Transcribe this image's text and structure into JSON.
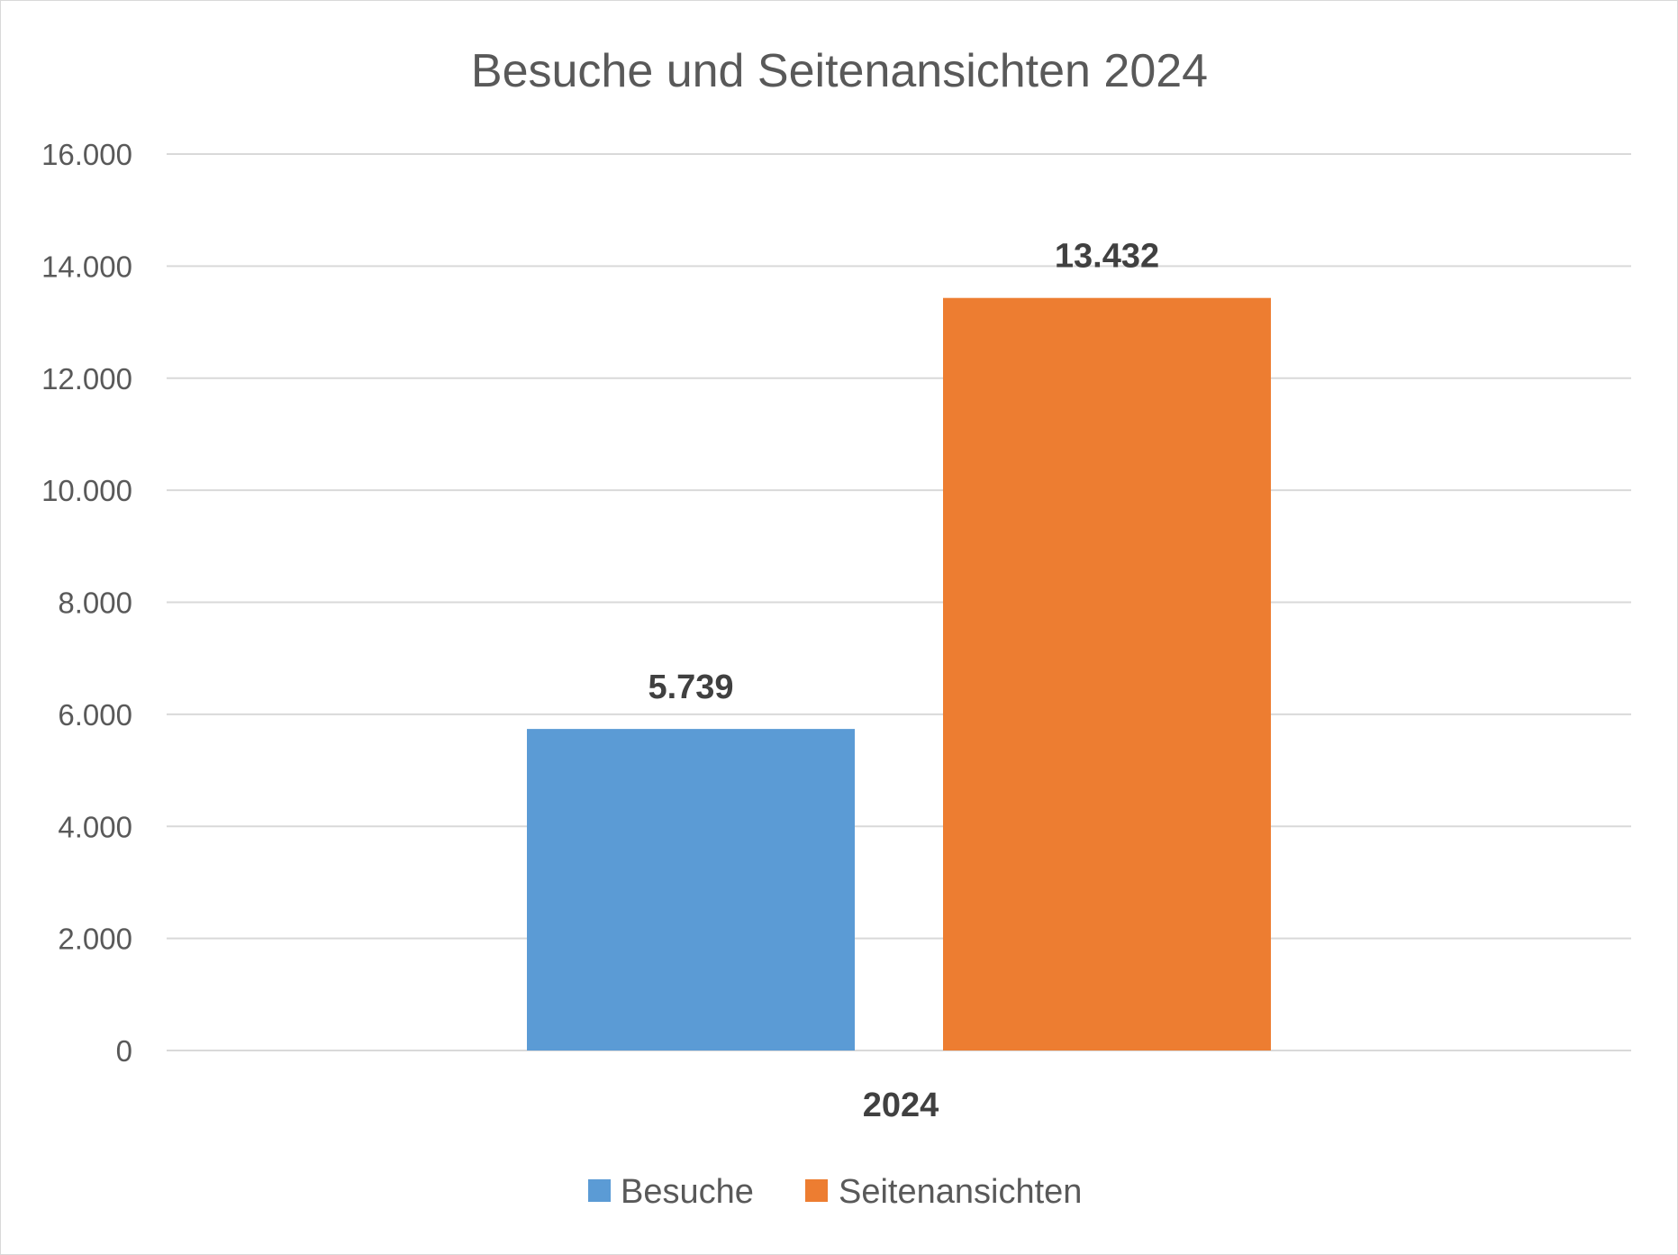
{
  "chart_data": {
    "type": "bar",
    "title": "Besuche und Seitenansichten 2024",
    "categories": [
      "2024"
    ],
    "series": [
      {
        "name": "Besuche",
        "values": [
          5739
        ],
        "value_labels": [
          "5.739"
        ],
        "color": "#5b9bd5"
      },
      {
        "name": "Seitenansichten",
        "values": [
          13432
        ],
        "value_labels": [
          "13.432"
        ],
        "color": "#ed7d31"
      }
    ],
    "ylim": [
      0,
      16000
    ],
    "y_ticks": [
      0,
      2000,
      4000,
      6000,
      8000,
      10000,
      12000,
      14000,
      16000
    ],
    "y_tick_labels": [
      "0",
      "2.000",
      "4.000",
      "6.000",
      "8.000",
      "10.000",
      "12.000",
      "14.000",
      "16.000"
    ],
    "grid": true,
    "legend_position": "bottom"
  }
}
